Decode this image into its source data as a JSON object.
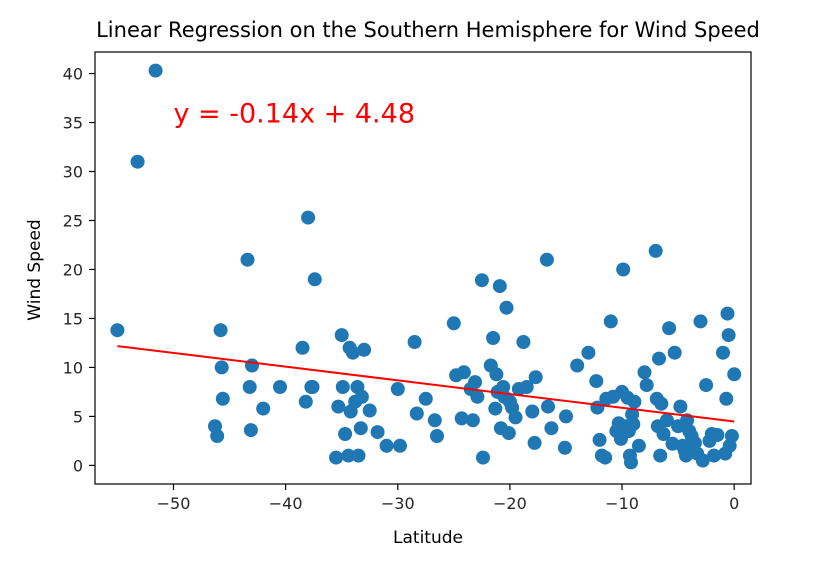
{
  "chart_data": {
    "type": "scatter",
    "title": "Linear Regression on the Southern Hemisphere for Wind Speed",
    "xlabel": "Latitude",
    "ylabel": "Wind Speed",
    "xlim": [
      -57,
      1.5
    ],
    "ylim": [
      -1.9,
      42.2
    ],
    "x_ticks": [
      -50,
      -40,
      -30,
      -20,
      -10,
      0
    ],
    "x_tick_labels": [
      "−50",
      "−40",
      "−30",
      "−20",
      "−10",
      "0"
    ],
    "y_ticks": [
      0,
      5,
      10,
      15,
      20,
      25,
      30,
      35,
      40
    ],
    "y_tick_labels": [
      "0",
      "5",
      "10",
      "15",
      "20",
      "25",
      "30",
      "35",
      "40"
    ],
    "grid": false,
    "point_color": "#1f77b4",
    "series": [
      {
        "x": [
          -55.0,
          -53.2,
          -51.6,
          -46.3,
          -46.1,
          -45.8,
          -45.7,
          -45.6,
          -43.4,
          -43.1,
          -43.0,
          -43.2,
          -42.0,
          -40.5,
          -38.5,
          -38.2,
          -38.0,
          -37.7,
          -37.4,
          -37.6,
          -35.5,
          -35.3,
          -35.0,
          -34.9,
          -34.7,
          -34.4,
          -34.3,
          -34.2,
          -34.0,
          -33.8,
          -33.6,
          -33.5,
          -33.3,
          -33.2,
          -33.0,
          -32.5,
          -31.8,
          -31.0,
          -30.0,
          -29.8,
          -28.5,
          -28.3,
          -27.5,
          -26.7,
          -26.5,
          -25.0,
          -24.8,
          -24.3,
          -24.1,
          -23.5,
          -23.3,
          -23.1,
          -22.9,
          -22.5,
          -22.4,
          -21.7,
          -21.5,
          -21.3,
          -21.2,
          -21.1,
          -20.9,
          -20.8,
          -20.6,
          -20.5,
          -20.3,
          -20.1,
          -20.0,
          -19.8,
          -19.5,
          -19.2,
          -18.8,
          -18.5,
          -18.0,
          -17.8,
          -17.7,
          -16.7,
          -16.6,
          -16.3,
          -15.0,
          -15.1,
          -14.0,
          -13.0,
          -12.3,
          -12.2,
          -12.0,
          -11.8,
          -11.5,
          -11.4,
          -11.0,
          -10.8,
          -10.5,
          -10.3,
          -10.0,
          -10.1,
          -9.9,
          -9.7,
          -9.5,
          -9.4,
          -9.3,
          -9.2,
          -9.1,
          -9.0,
          -8.9,
          -8.5,
          -8.0,
          -7.8,
          -7.0,
          -6.9,
          -6.8,
          -6.7,
          -6.6,
          -6.5,
          -6.3,
          -6.0,
          -5.8,
          -5.5,
          -5.3,
          -5.0,
          -4.8,
          -4.6,
          -4.4,
          -4.3,
          -4.2,
          -4.0,
          -3.8,
          -3.5,
          -3.3,
          -3.0,
          -2.8,
          -2.5,
          -2.2,
          -2.0,
          -1.8,
          -1.5,
          -1.0,
          -0.8,
          -0.7,
          -0.6,
          -0.5,
          -0.4,
          -0.2,
          0.0
        ],
        "y": [
          13.8,
          31.0,
          40.3,
          4.0,
          3.0,
          13.8,
          10.0,
          6.8,
          21.0,
          3.6,
          10.2,
          8.0,
          5.8,
          8.0,
          12.0,
          6.5,
          25.3,
          8.0,
          19.0,
          8.0,
          0.8,
          6.0,
          13.3,
          8.0,
          3.2,
          1.0,
          12.0,
          5.5,
          11.5,
          6.5,
          8.0,
          1.0,
          3.8,
          7.0,
          11.8,
          5.6,
          3.4,
          2.0,
          7.8,
          2.0,
          12.6,
          5.3,
          6.8,
          4.6,
          3.0,
          14.5,
          9.2,
          4.8,
          9.5,
          7.8,
          4.6,
          8.5,
          7.0,
          18.9,
          0.8,
          10.2,
          13.0,
          5.8,
          9.3,
          7.5,
          18.3,
          3.8,
          8.0,
          7.0,
          16.1,
          3.3,
          6.5,
          5.9,
          4.9,
          7.8,
          12.6,
          8.0,
          5.5,
          2.3,
          9.0,
          21.0,
          6.0,
          3.8,
          5.0,
          1.8,
          10.2,
          11.5,
          8.6,
          5.9,
          2.6,
          1.0,
          0.8,
          6.8,
          14.7,
          7.0,
          3.5,
          4.3,
          7.5,
          2.7,
          20.0,
          4.0,
          6.9,
          3.5,
          1.0,
          0.3,
          5.2,
          4.2,
          6.5,
          2.0,
          9.5,
          8.2,
          21.9,
          6.8,
          4.0,
          10.9,
          1.0,
          6.3,
          3.2,
          4.6,
          14.0,
          2.2,
          11.5,
          4.0,
          6.0,
          2.0,
          1.5,
          1.0,
          4.6,
          3.5,
          3.0,
          2.3,
          1.2,
          14.7,
          0.5,
          8.2,
          2.5,
          3.2,
          1.0,
          3.1,
          11.5,
          1.2,
          6.8,
          15.5,
          13.3,
          2.0,
          3.0,
          9.3
        ]
      }
    ],
    "regression": {
      "slope": -0.14,
      "intercept": 4.48,
      "x_start": -55.0,
      "x_end": 0.0,
      "color": "#ff0000",
      "equation_text": "y = -0.14x + 4.48",
      "equation_anchor": [
        -50,
        35
      ]
    }
  }
}
